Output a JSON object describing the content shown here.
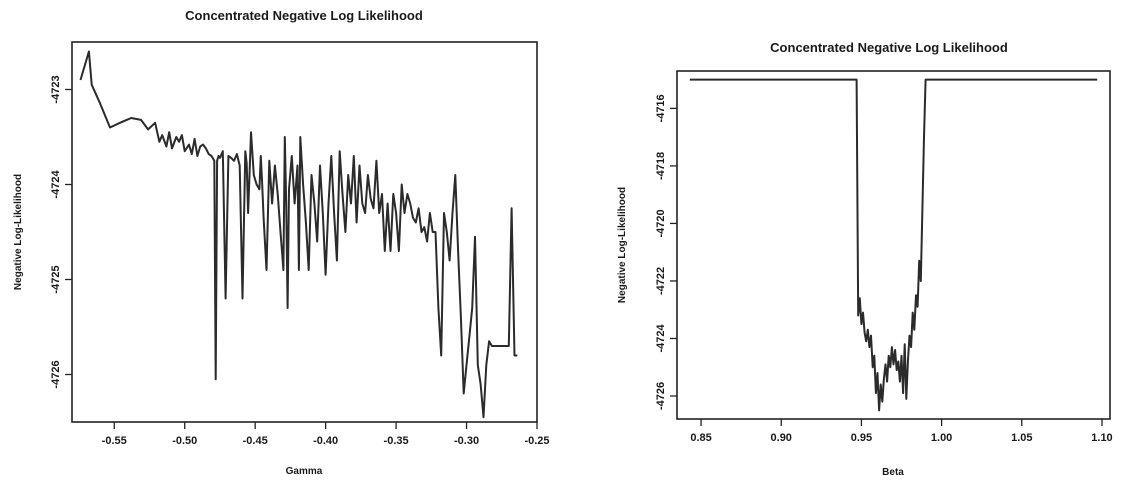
{
  "chart_data": [
    {
      "type": "line",
      "title": "Concentrated Negative Log Likelihood",
      "xlabel": "Gamma",
      "ylabel": "Negative Log-Likelihood",
      "xlim": [
        -0.58,
        -0.25
      ],
      "ylim": [
        -4726.5,
        -4722.5
      ],
      "x_ticks": [
        -0.55,
        -0.5,
        -0.45,
        -0.4,
        -0.35,
        -0.3,
        -0.25
      ],
      "x_tick_labels": [
        "-0.55",
        "-0.50",
        "-0.45",
        "-0.40",
        "-0.35",
        "-0.30",
        "-0.25"
      ],
      "y_ticks": [
        -4723,
        -4724,
        -4725,
        -4726
      ],
      "y_tick_labels": [
        "-4723",
        "-4724",
        "-4725",
        "-4726"
      ],
      "grid": false,
      "series": [
        {
          "x": [
            -0.574,
            -0.568,
            -0.566,
            -0.56,
            -0.553,
            -0.546,
            -0.538,
            -0.531,
            -0.526,
            -0.521,
            -0.518,
            -0.516,
            -0.513,
            -0.511,
            -0.509,
            -0.506,
            -0.504,
            -0.502,
            -0.5,
            -0.497,
            -0.495,
            -0.493,
            -0.491,
            -0.489,
            -0.487,
            -0.485,
            -0.483,
            -0.481,
            -0.479,
            -0.478,
            -0.477,
            -0.476,
            -0.475,
            -0.473,
            -0.471,
            -0.469,
            -0.467,
            -0.465,
            -0.463,
            -0.461,
            -0.459,
            -0.457,
            -0.456,
            -0.455,
            -0.454,
            -0.453,
            -0.451,
            -0.449,
            -0.447,
            -0.446,
            -0.445,
            -0.444,
            -0.442,
            -0.44,
            -0.438,
            -0.436,
            -0.434,
            -0.432,
            -0.43,
            -0.429,
            -0.428,
            -0.427,
            -0.426,
            -0.424,
            -0.422,
            -0.42,
            -0.419,
            -0.418,
            -0.416,
            -0.414,
            -0.412,
            -0.41,
            -0.408,
            -0.406,
            -0.404,
            -0.402,
            -0.4,
            -0.398,
            -0.396,
            -0.394,
            -0.392,
            -0.39,
            -0.388,
            -0.386,
            -0.384,
            -0.382,
            -0.38,
            -0.378,
            -0.376,
            -0.374,
            -0.372,
            -0.37,
            -0.368,
            -0.366,
            -0.364,
            -0.362,
            -0.36,
            -0.358,
            -0.356,
            -0.354,
            -0.352,
            -0.35,
            -0.348,
            -0.346,
            -0.344,
            -0.342,
            -0.34,
            -0.338,
            -0.336,
            -0.334,
            -0.332,
            -0.33,
            -0.328,
            -0.326,
            -0.324,
            -0.322,
            -0.32,
            -0.318,
            -0.316,
            -0.314,
            -0.312,
            -0.31,
            -0.308,
            -0.306,
            -0.304,
            -0.302,
            -0.3,
            -0.298,
            -0.296,
            -0.294,
            -0.292,
            -0.29,
            -0.288,
            -0.286,
            -0.284,
            -0.282,
            -0.28,
            -0.278,
            -0.276,
            -0.274,
            -0.272,
            -0.27,
            -0.268,
            -0.266,
            -0.264
          ],
          "values": [
            -4722.9,
            -4722.6,
            -4722.95,
            -4723.15,
            -4723.4,
            -4723.35,
            -4723.3,
            -4723.32,
            -4723.42,
            -4723.35,
            -4723.55,
            -4723.48,
            -4723.6,
            -4723.45,
            -4723.62,
            -4723.5,
            -4723.55,
            -4723.48,
            -4723.65,
            -4723.58,
            -4723.68,
            -4723.52,
            -4723.7,
            -4723.6,
            -4723.58,
            -4723.62,
            -4723.68,
            -4723.7,
            -4723.75,
            -4726.05,
            -4723.75,
            -4723.7,
            -4723.72,
            -4723.65,
            -4725.2,
            -4723.7,
            -4723.72,
            -4723.75,
            -4723.68,
            -4723.8,
            -4725.2,
            -4723.65,
            -4723.78,
            -4724.3,
            -4723.9,
            -4723.45,
            -4723.9,
            -4724.0,
            -4724.05,
            -4723.7,
            -4724.0,
            -4724.35,
            -4724.9,
            -4723.75,
            -4724.2,
            -4723.8,
            -4724.1,
            -4724.5,
            -4724.9,
            -4723.5,
            -4724.2,
            -4725.3,
            -4724.05,
            -4723.7,
            -4724.2,
            -4723.8,
            -4724.9,
            -4723.5,
            -4724.0,
            -4724.4,
            -4724.9,
            -4723.9,
            -4724.2,
            -4724.6,
            -4723.8,
            -4724.3,
            -4724.95,
            -4724.2,
            -4723.7,
            -4724.3,
            -4724.8,
            -4723.65,
            -4724.1,
            -4724.5,
            -4723.9,
            -4724.2,
            -4723.7,
            -4724.4,
            -4723.8,
            -4724.2,
            -4724.3,
            -4723.9,
            -4724.15,
            -4724.25,
            -4723.75,
            -4724.3,
            -4724.1,
            -4724.7,
            -4724.2,
            -4724.7,
            -4724.1,
            -4724.3,
            -4724.7,
            -4724.0,
            -4724.3,
            -4724.1,
            -4724.2,
            -4724.35,
            -4724.4,
            -4724.25,
            -4724.5,
            -4724.45,
            -4724.6,
            -4724.3,
            -4724.5,
            -4724.5,
            -4725.3,
            -4725.8,
            -4724.3,
            -4724.5,
            -4724.8,
            -4724.3,
            -4723.9,
            -4724.7,
            -4725.4,
            -4726.2,
            -4725.9,
            -4725.6,
            -4725.3,
            -4724.55,
            -4725.9,
            -4726.1,
            -4726.45,
            -4725.9,
            -4725.65,
            -4725.7,
            -4725.7,
            -4725.7,
            -4725.7,
            -4725.7,
            -4725.7,
            -4725.7,
            -4724.25,
            -4725.8,
            -4725.8
          ]
        }
      ]
    },
    {
      "type": "line",
      "title": "Concentrated Negative Log Likelihood",
      "xlabel": "Beta",
      "ylabel": "Negative Log-Likelihood",
      "xlim": [
        0.835,
        1.105
      ],
      "ylim": [
        -4726.8,
        -4714.7
      ],
      "x_ticks": [
        0.85,
        0.9,
        0.95,
        1.0,
        1.05,
        1.1
      ],
      "x_tick_labels": [
        "0.85",
        "0.90",
        "0.95",
        "1.00",
        "1.05",
        "1.10"
      ],
      "y_ticks": [
        -4716,
        -4718,
        -4720,
        -4722,
        -4724,
        -4726
      ],
      "y_tick_labels": [
        "-4716",
        "-4718",
        "-4720",
        "-4722",
        "-4724",
        "-4726"
      ],
      "grid": false,
      "series": [
        {
          "x": [
            0.843,
            0.947,
            0.948,
            0.949,
            0.95,
            0.951,
            0.952,
            0.953,
            0.954,
            0.955,
            0.956,
            0.957,
            0.958,
            0.959,
            0.96,
            0.961,
            0.962,
            0.963,
            0.964,
            0.965,
            0.966,
            0.967,
            0.968,
            0.969,
            0.97,
            0.971,
            0.972,
            0.973,
            0.974,
            0.975,
            0.976,
            0.977,
            0.978,
            0.979,
            0.98,
            0.981,
            0.982,
            0.983,
            0.984,
            0.985,
            0.986,
            0.987,
            0.988,
            0.989,
            0.99,
            0.991,
            1.097
          ],
          "values": [
            -4715.0,
            -4715.0,
            -4723.2,
            -4722.6,
            -4723.5,
            -4723.1,
            -4723.8,
            -4724.1,
            -4723.7,
            -4724.3,
            -4723.9,
            -4725.0,
            -4724.6,
            -4725.9,
            -4725.2,
            -4726.5,
            -4725.6,
            -4726.2,
            -4725.4,
            -4724.9,
            -4725.5,
            -4724.6,
            -4725.0,
            -4724.3,
            -4724.9,
            -4724.4,
            -4725.1,
            -4724.8,
            -4725.5,
            -4724.6,
            -4725.9,
            -4724.2,
            -4726.1,
            -4724.8,
            -4723.9,
            -4724.3,
            -4723.1,
            -4723.7,
            -4722.5,
            -4722.9,
            -4721.3,
            -4722.0,
            -4719.5,
            -4717.0,
            -4715.0,
            -4715.0,
            -4715.0
          ]
        }
      ]
    }
  ]
}
